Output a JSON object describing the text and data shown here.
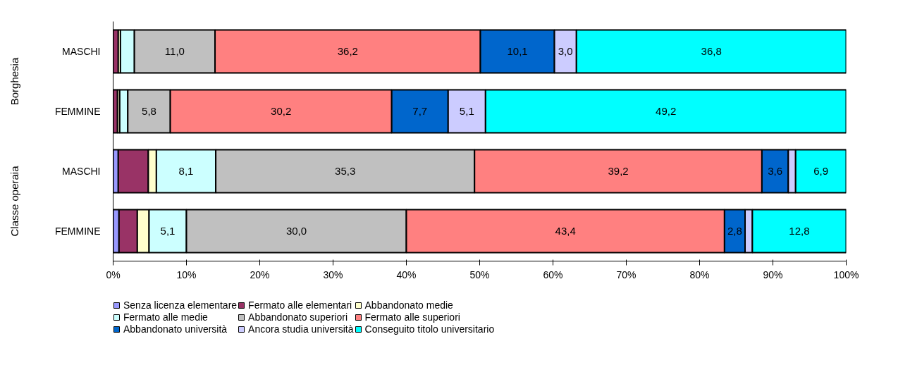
{
  "chart_data": {
    "type": "bar",
    "orientation": "horizontal",
    "stacked": true,
    "legend": "bottom",
    "grid": false,
    "categories": [
      "MASCHI",
      "FEMMINE",
      "MASCHI",
      "FEMMINE"
    ],
    "annotations": [
      "Borghesia",
      "Classe operaia"
    ],
    "xlim": [
      0,
      100
    ],
    "xticks": [
      {
        "value": 0,
        "label": "0%"
      },
      {
        "value": 10,
        "label": "10%"
      },
      {
        "value": 20,
        "label": "20%"
      },
      {
        "value": 30,
        "label": "30%"
      },
      {
        "value": 40,
        "label": "40%"
      },
      {
        "value": 50,
        "label": "50%"
      },
      {
        "value": 60,
        "label": "60%"
      },
      {
        "value": 70,
        "label": "70%"
      },
      {
        "value": 80,
        "label": "80%"
      },
      {
        "value": 90,
        "label": "90%"
      },
      {
        "value": 100,
        "label": "100%"
      }
    ],
    "series": [
      {
        "name": "Senza licenza elementare",
        "color": "#9999ff",
        "values": [
          null,
          null,
          0.7,
          0.8
        ],
        "value_labels": [
          null,
          null,
          null,
          null
        ]
      },
      {
        "name": "Fermato alle elementari",
        "color": "#993366",
        "values": [
          0.7,
          0.6,
          4.1,
          2.5
        ],
        "value_labels": [
          null,
          null,
          null,
          null
        ]
      },
      {
        "name": "Abbandonato medie",
        "color": "#ffffcc",
        "values": [
          0.3,
          0.3,
          1.1,
          1.6
        ],
        "value_labels": [
          null,
          null,
          null,
          null
        ]
      },
      {
        "name": "Fermato alle medie",
        "color": "#ccffff",
        "values": [
          1.9,
          1.1,
          8.1,
          5.1
        ],
        "value_labels": [
          null,
          null,
          "8,1",
          "5,1"
        ]
      },
      {
        "name": "Abbandonato superiori",
        "color": "#c0c0c0",
        "values": [
          11.0,
          5.8,
          35.3,
          30.0
        ],
        "value_labels": [
          "11,0",
          "5,8",
          "35,3",
          "30,0"
        ]
      },
      {
        "name": "Fermato alle superiori",
        "color": "#ff8080",
        "values": [
          36.2,
          30.2,
          39.2,
          43.4
        ],
        "value_labels": [
          "36,2",
          "30,2",
          "39,2",
          "43,4"
        ]
      },
      {
        "name": "Abbandonato università",
        "color": "#0066cc",
        "values": [
          10.1,
          7.7,
          3.6,
          2.8
        ],
        "value_labels": [
          "10,1",
          "7,7",
          "3,6",
          "2,8"
        ]
      },
      {
        "name": "Ancora studia università",
        "color": "#ccccff",
        "values": [
          3.0,
          5.1,
          1.0,
          1.0
        ],
        "value_labels": [
          "3,0",
          "5,1",
          null,
          null
        ]
      },
      {
        "name": "Conseguito titolo universitario",
        "color": "#00ffff",
        "values": [
          36.8,
          49.2,
          6.9,
          12.8
        ],
        "value_labels": [
          "36,8",
          "49,2",
          "6,9",
          "12,8"
        ]
      }
    ]
  }
}
